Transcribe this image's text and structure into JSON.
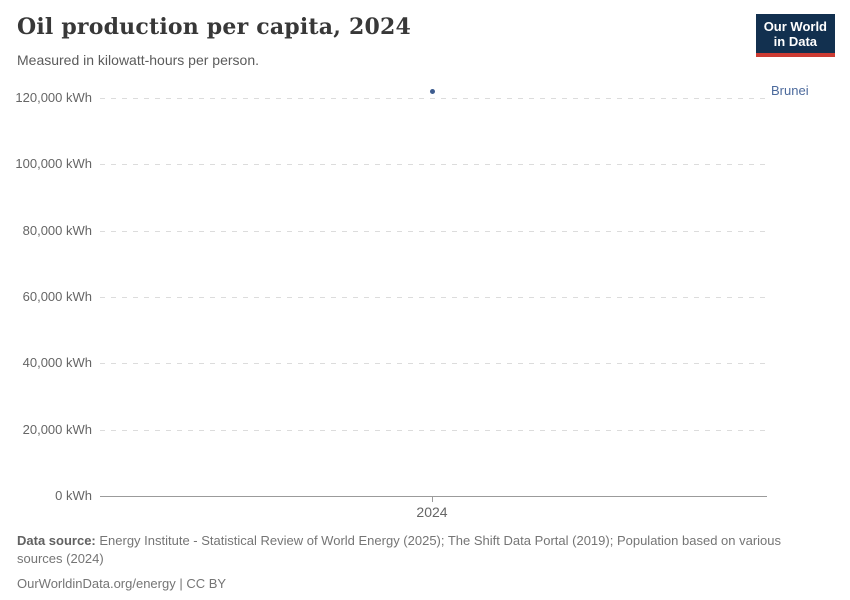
{
  "header": {
    "title": "Oil production per capita, 2024",
    "subtitle": "Measured in kilowatt-hours per person.",
    "logo": {
      "line1": "Our World",
      "line2": "in Data",
      "bg_color": "#12304f",
      "accent_color": "#cc3b33"
    }
  },
  "chart_data": {
    "type": "scatter",
    "title": "Oil production per capita, 2024",
    "ylabel": "",
    "xlabel": "",
    "unit": "kWh",
    "grid": "horizontal-dashed",
    "ylim": [
      0,
      122000
    ],
    "yticks": [
      0,
      20000,
      40000,
      60000,
      80000,
      100000,
      120000
    ],
    "ytick_labels": [
      "0 kWh",
      "20,000 kWh",
      "40,000 kWh",
      "60,000 kWh",
      "80,000 kWh",
      "100,000 kWh",
      "120,000 kWh"
    ],
    "xtick_labels": [
      "2024"
    ],
    "series": [
      {
        "name": "Brunei",
        "x": [
          2024
        ],
        "values": [
          122000
        ],
        "point_color": "#3d5c8f",
        "label_color": "#4c6a9c"
      }
    ],
    "legend_position": "right-entity-label"
  },
  "footer": {
    "data_source_label": "Data source:",
    "data_source_text": " Energy Institute - Statistical Review of World Energy (2025); The Shift Data Portal (2019); Population based on various sources (2024)",
    "url": "OurWorldinData.org/energy",
    "license_suffix": " | CC BY"
  }
}
